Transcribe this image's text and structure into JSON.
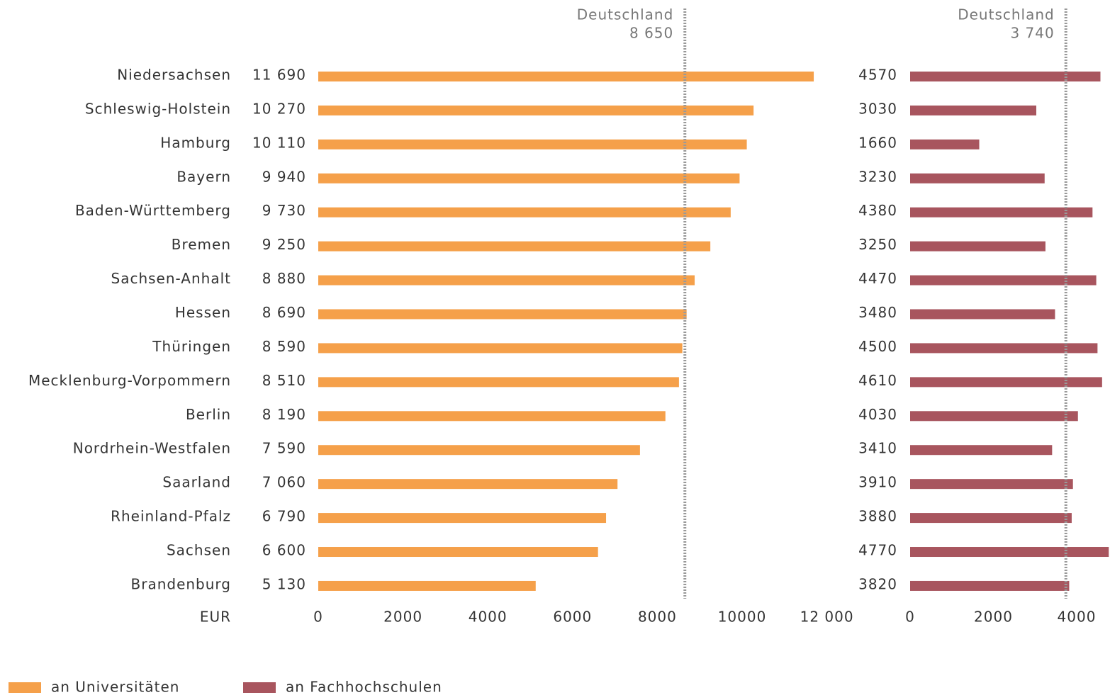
{
  "chart_data": {
    "type": "bar",
    "orientation": "horizontal",
    "x_unit": "EUR",
    "categories": [
      "Niedersachsen",
      "Schleswig-Holstein",
      "Hamburg",
      "Bayern",
      "Baden-Württemberg",
      "Bremen",
      "Sachsen-Anhalt",
      "Hessen",
      "Thüringen",
      "Mecklenburg-Vorpommern",
      "Berlin",
      "Nordrhein-Westfalen",
      "Saarland",
      "Rheinland-Pfalz",
      "Sachsen",
      "Brandenburg"
    ],
    "series": [
      {
        "name": "an Universitäten",
        "color": "#f5a04a",
        "values": [
          11690,
          10270,
          10110,
          9940,
          9730,
          9250,
          8880,
          8690,
          8590,
          8510,
          8190,
          7590,
          7060,
          6790,
          6600,
          5130
        ],
        "value_labels": [
          "11 690",
          "10 270",
          "10 110",
          "9 940",
          "9 730",
          "9 250",
          "8 880",
          "8 690",
          "8 590",
          "8 510",
          "8 190",
          "7 590",
          "7 060",
          "6 790",
          "6 600",
          "5 130"
        ],
        "xlim": [
          0,
          12000
        ],
        "xticks": [
          0,
          2000,
          4000,
          6000,
          8000,
          10000,
          {
            "value": 12000,
            "label": "12 000"
          }
        ],
        "reference": {
          "label": "Deutschland",
          "value": {
            "value": 8650,
            "label": "8 650"
          }
        }
      },
      {
        "name": "an Fachhochschulen",
        "color": "#a8555e",
        "values": [
          4570,
          3030,
          1660,
          3230,
          4380,
          3250,
          4470,
          3480,
          4500,
          4610,
          4030,
          3410,
          3910,
          3880,
          4770,
          3820
        ],
        "xlim": [
          0,
          4800
        ],
        "xticks": [
          0,
          2000,
          4000
        ],
        "reference": {
          "label": "Deutschland",
          "value": {
            "value": 3740,
            "label": "3 740"
          }
        }
      }
    ]
  }
}
